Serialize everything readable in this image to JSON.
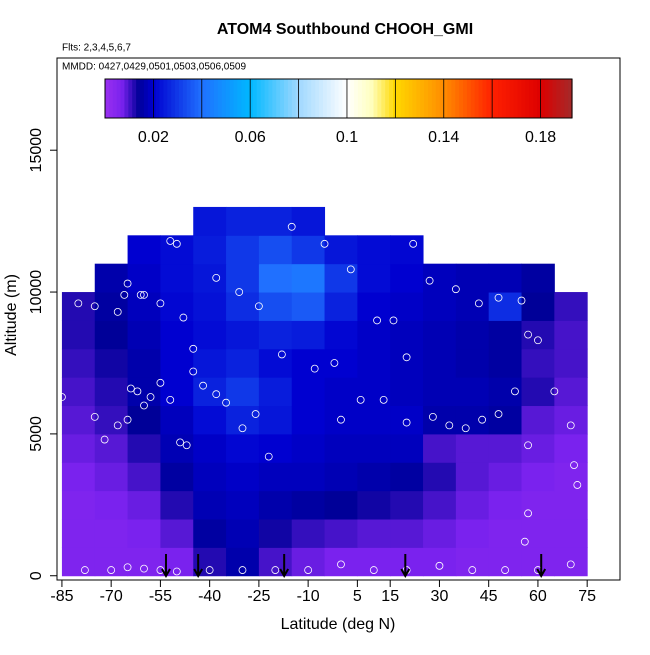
{
  "chart_data": {
    "type": "heatmap",
    "title": "ATOM4 Southbound CHOOH_GMI",
    "annotations": [
      "Flts: 2,3,4,5,6,7",
      "MMDD: 0427,0429,0501,0503,0506,0509"
    ],
    "x_label": "Latitude (deg N)",
    "y_label": "Altitude (m)",
    "xlim": [
      -86.5,
      85
    ],
    "ylim": [
      -150,
      18250
    ],
    "xticks": [
      -85,
      -70,
      -55,
      -40,
      -25,
      -10,
      5,
      15,
      30,
      45,
      60,
      75
    ],
    "yticks": [
      0,
      5000,
      10000,
      15000
    ],
    "x": [
      -80,
      -70,
      -60,
      -50,
      -40,
      -30,
      -20,
      -10,
      0,
      10,
      20,
      30,
      40,
      50,
      60,
      70
    ],
    "y": [
      500,
      1500,
      2500,
      3500,
      4500,
      5500,
      6500,
      7500,
      8500,
      9500,
      10500,
      11500,
      12500
    ],
    "z": [
      [
        0.006,
        0.006,
        0.006,
        0.007,
        0.012,
        0.016,
        0.01,
        0.008,
        0.007,
        0.007,
        0.007,
        0.007,
        0.006,
        0.006,
        0.006,
        0.006
      ],
      [
        0.006,
        0.006,
        0.007,
        0.009,
        0.015,
        0.017,
        0.013,
        0.011,
        0.01,
        0.009,
        0.009,
        0.008,
        0.007,
        0.006,
        0.006,
        0.006
      ],
      [
        0.006,
        0.007,
        0.008,
        0.012,
        0.017,
        0.018,
        0.016,
        0.015,
        0.014,
        0.013,
        0.012,
        0.01,
        0.008,
        0.007,
        0.006,
        0.006
      ],
      [
        0.007,
        0.008,
        0.01,
        0.015,
        0.018,
        0.019,
        0.018,
        0.018,
        0.017,
        0.016,
        0.015,
        0.012,
        0.009,
        0.008,
        0.007,
        0.006
      ],
      [
        0.008,
        0.009,
        0.012,
        0.017,
        0.019,
        0.021,
        0.02,
        0.019,
        0.018,
        0.018,
        0.018,
        0.01,
        0.009,
        0.009,
        0.008,
        0.007
      ],
      [
        0.009,
        0.011,
        0.014,
        0.018,
        0.022,
        0.026,
        0.024,
        0.02,
        0.019,
        0.019,
        0.019,
        0.016,
        0.016,
        0.015,
        0.009,
        0.008
      ],
      [
        0.01,
        0.012,
        0.016,
        0.02,
        0.026,
        0.03,
        0.025,
        0.02,
        0.019,
        0.019,
        0.018,
        0.017,
        0.017,
        0.016,
        0.012,
        0.009
      ],
      [
        0.011,
        0.013,
        0.016,
        0.02,
        0.024,
        0.026,
        0.022,
        0.02,
        0.02,
        0.019,
        0.018,
        0.017,
        0.016,
        0.015,
        0.011,
        0.01
      ],
      [
        0.012,
        0.014,
        0.017,
        0.02,
        0.022,
        0.024,
        0.026,
        0.025,
        0.021,
        0.019,
        0.018,
        0.017,
        0.016,
        0.015,
        0.012,
        0.01
      ],
      [
        0.012,
        0.015,
        0.018,
        0.021,
        0.023,
        0.028,
        0.034,
        0.036,
        0.026,
        0.02,
        0.019,
        0.018,
        0.017,
        0.028,
        0.014,
        0.011
      ],
      [
        null,
        0.016,
        0.019,
        0.022,
        0.024,
        0.03,
        0.04,
        0.042,
        0.03,
        0.022,
        0.02,
        0.018,
        0.017,
        0.017,
        0.015,
        null
      ],
      [
        null,
        null,
        0.02,
        0.022,
        0.025,
        0.03,
        0.034,
        0.03,
        0.024,
        0.022,
        0.021,
        null,
        null,
        null,
        null,
        null
      ],
      [
        null,
        null,
        null,
        null,
        0.024,
        0.026,
        0.026,
        0.024,
        null,
        null,
        null,
        null,
        null,
        null,
        null,
        null
      ]
    ],
    "samples": {
      "x": [
        -85,
        -75,
        -72,
        -68,
        -65,
        -64,
        -62,
        -60,
        -58,
        -55,
        -52,
        -49,
        -47,
        -45,
        -42,
        -38,
        -35,
        -30,
        -26,
        -22,
        -65,
        -61,
        -55,
        -48,
        -45,
        -38,
        -31,
        -25,
        -18,
        -8,
        -2,
        0,
        6,
        13,
        20,
        20,
        27,
        35,
        42,
        48,
        55,
        60,
        57,
        -52,
        -50,
        -15,
        -5,
        3,
        22,
        58,
        48,
        53,
        57,
        65,
        70,
        72,
        71,
        57,
        56,
        28,
        33,
        38,
        43,
        -78,
        -70,
        -65,
        -60,
        -55,
        -50,
        -40,
        -30,
        -20,
        -10,
        0,
        10,
        20,
        30,
        40,
        50,
        60,
        70,
        -75,
        -80,
        -68,
        -66,
        11,
        16,
        -60
      ],
      "y": [
        6300,
        5600,
        4800,
        5300,
        5500,
        6600,
        6500,
        6000,
        6300,
        6800,
        6200,
        4700,
        4600,
        7200,
        6700,
        6400,
        6100,
        5200,
        5700,
        4200,
        10300,
        9900,
        9600,
        9100,
        8000,
        10500,
        10000,
        9500,
        7800,
        7300,
        7500,
        5500,
        6200,
        6200,
        5400,
        7700,
        10400,
        10100,
        9600,
        9800,
        9700,
        8300,
        8500,
        11800,
        11700,
        12300,
        11700,
        10800,
        11700,
        11400,
        5700,
        6500,
        4600,
        6500,
        5300,
        3200,
        3900,
        2200,
        1200,
        5600,
        5300,
        5200,
        5500,
        200,
        200,
        300,
        250,
        200,
        150,
        200,
        200,
        200,
        200,
        400,
        200,
        200,
        350,
        200,
        200,
        200,
        400,
        9500,
        9600,
        9300,
        9900,
        9000,
        9000,
        9900
      ]
    },
    "arrows_x": [
      -53.3,
      -43.5,
      -17.3,
      19.6,
      61
    ],
    "colorbar": {
      "lim": [
        0,
        0.193
      ],
      "ticks": [
        0.02,
        0.06,
        0.1,
        0.14,
        0.18
      ],
      "breaks": [
        0.02,
        0.04,
        0.06,
        0.08,
        0.1,
        0.12,
        0.14,
        0.16,
        0.18
      ],
      "colorscale": [
        [
          0,
          "#9a30f0"
        ],
        [
          0.007,
          "#7a22ee"
        ],
        [
          0.014,
          "#000098"
        ],
        [
          0.02,
          "#0000d0"
        ],
        [
          0.04,
          "#2070ff"
        ],
        [
          0.06,
          "#00b8ff"
        ],
        [
          0.08,
          "#a0d8ff"
        ],
        [
          0.1,
          "#ffffff"
        ],
        [
          0.11,
          "#ffffc0"
        ],
        [
          0.12,
          "#ffd800"
        ],
        [
          0.14,
          "#ff8c00"
        ],
        [
          0.16,
          "#ff2000"
        ],
        [
          0.18,
          "#dd0000"
        ],
        [
          0.193,
          "#a52a2a"
        ]
      ]
    }
  }
}
